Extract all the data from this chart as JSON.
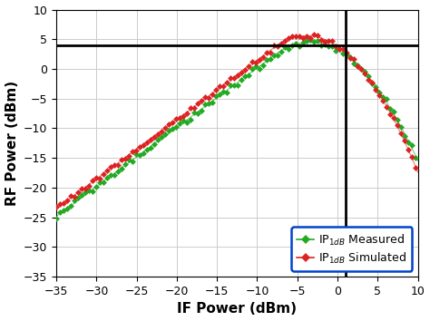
{
  "xlabel": "IF Power (dBm)",
  "ylabel": "RF Power (dBm)",
  "xlim": [
    -35,
    10
  ],
  "ylim": [
    -35,
    10
  ],
  "xticks": [
    -35,
    -30,
    -25,
    -20,
    -15,
    -10,
    -5,
    0,
    5,
    10
  ],
  "yticks": [
    -35,
    -30,
    -25,
    -20,
    -15,
    -10,
    -5,
    0,
    5,
    10
  ],
  "hline_y": 4.0,
  "vline_x": 1.0,
  "color_measured": "#22aa22",
  "color_simulated": "#dd2222",
  "background_color": "#ffffff",
  "grid_color": "#cccccc",
  "xlabel_fontsize": 11,
  "ylabel_fontsize": 11,
  "tick_fontsize": 9,
  "legend_fontsize": 9,
  "gain_sim": 11.5,
  "gain_meas": 10.2,
  "ip1db_sim": 1.0,
  "ip1db_meas": 1.0,
  "compress_start": -8,
  "compress_strength_sim": 0.12,
  "compress_strength_meas": 0.11
}
